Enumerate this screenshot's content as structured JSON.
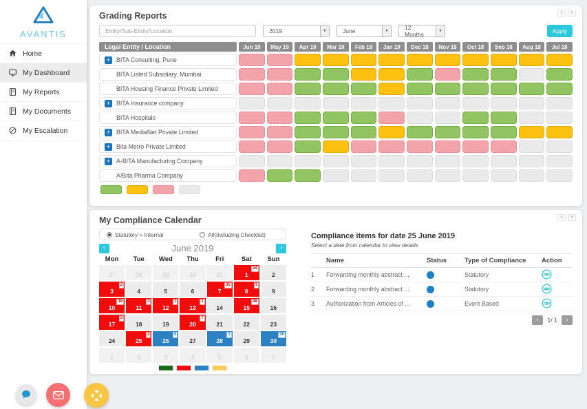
{
  "icons": {
    "collapse": "∧",
    "close": "✕",
    "prev": "‹",
    "next": "›",
    "dropdown": "▼",
    "plus": "+"
  },
  "colors": {
    "accent_cyan": "#2bc9db",
    "grade_red": "#f3a4aa",
    "grade_green": "#92c562",
    "grade_yellow": "#fdc112",
    "grade_gray": "#eaeaea",
    "cal_red": "#f20c0c",
    "cal_blue": "#2d80c2",
    "cal_legend_green": "#1c691c",
    "cal_legend_yellow": "#fbc95c",
    "status_blue": "#1b80c5"
  },
  "sidebar": {
    "logo_text": "AVANTIS",
    "items": [
      {
        "label": "Home",
        "icon": "home-icon",
        "active": false
      },
      {
        "label": "My Dashboard",
        "icon": "dashboard-icon",
        "active": true
      },
      {
        "label": "My Reports",
        "icon": "reports-icon",
        "active": false
      },
      {
        "label": "My Documents",
        "icon": "documents-icon",
        "active": false
      },
      {
        "label": "My Escalation",
        "icon": "escalation-icon",
        "active": false
      }
    ]
  },
  "grading": {
    "title": "Grading Reports",
    "filters": {
      "entity_placeholder": "Entity/Sub-Entity/Location",
      "year": "2019",
      "month": "June",
      "range": "12 Months",
      "apply_label": "Apply"
    },
    "table": {
      "entity_header": "Legal Entity / Location",
      "months": [
        "Jun 19",
        "May 19",
        "Apr 19",
        "Mar 19",
        "Feb 19",
        "Jan 19",
        "Dec 18",
        "Nov 18",
        "Oct 18",
        "Sep 18",
        "Aug 18",
        "Jul 18"
      ],
      "rows": [
        {
          "name": "BITA Consulting, Pune",
          "expandable": true,
          "grades": [
            "R",
            "R",
            "Y",
            "Y",
            "Y",
            "Y",
            "Y",
            "Y",
            "Y",
            "Y",
            "Y",
            "Y"
          ]
        },
        {
          "name": "BITA Listed Subsidiary, Mumbai",
          "expandable": false,
          "grades": [
            "R",
            "R",
            "G",
            "G",
            "Y",
            "Y",
            "G",
            "R",
            "G",
            "G",
            "N",
            "G"
          ]
        },
        {
          "name": "BITA Housing Finance Private Limited",
          "expandable": false,
          "grades": [
            "R",
            "R",
            "G",
            "G",
            "G",
            "Y",
            "G",
            "G",
            "G",
            "G",
            "G",
            "G"
          ]
        },
        {
          "name": "BITA Insurance company",
          "expandable": true,
          "grades": [
            "N",
            "N",
            "N",
            "N",
            "N",
            "N",
            "N",
            "N",
            "N",
            "N",
            "N",
            "N"
          ]
        },
        {
          "name": "BITA Hospitals",
          "expandable": false,
          "grades": [
            "R",
            "R",
            "G",
            "G",
            "G",
            "R",
            "N",
            "N",
            "G",
            "G",
            "N",
            "N"
          ]
        },
        {
          "name": "BITA MediaNet Private Limited",
          "expandable": true,
          "grades": [
            "R",
            "R",
            "G",
            "G",
            "G",
            "Y",
            "G",
            "G",
            "G",
            "G",
            "Y",
            "Y"
          ]
        },
        {
          "name": "Bita Metro Private Limited",
          "expandable": true,
          "grades": [
            "R",
            "R",
            "G",
            "Y",
            "R",
            "R",
            "R",
            "R",
            "R",
            "R",
            "N",
            "N"
          ]
        },
        {
          "name": "A-BITA Manufacturing Company",
          "expandable": true,
          "grades": [
            "N",
            "N",
            "N",
            "N",
            "N",
            "N",
            "N",
            "N",
            "N",
            "N",
            "N",
            "N"
          ]
        },
        {
          "name": "A/Bita Pharma Company",
          "expandable": false,
          "grades": [
            "R",
            "G",
            "G",
            "N",
            "N",
            "N",
            "N",
            "N",
            "N",
            "N",
            "N",
            "N"
          ]
        }
      ],
      "legend_codes": [
        "G",
        "Y",
        "R",
        "N"
      ]
    }
  },
  "calendar": {
    "title": "My Compliance Calendar",
    "radio_options": [
      {
        "label": "Statutory + Internal",
        "checked": true
      },
      {
        "label": "All(Including Checklist)",
        "checked": false
      }
    ],
    "month_title": "June 2019",
    "day_headers": [
      "Mon",
      "Tue",
      "Wed",
      "Thu",
      "Fri",
      "Sat",
      "Sun"
    ],
    "cells": [
      {
        "day": "27",
        "type": "muted"
      },
      {
        "day": "28",
        "type": "muted"
      },
      {
        "day": "29",
        "type": "muted"
      },
      {
        "day": "30",
        "type": "muted"
      },
      {
        "day": "31",
        "type": "muted"
      },
      {
        "day": "1",
        "type": "red",
        "badge": "24"
      },
      {
        "day": "2",
        "type": "normal"
      },
      {
        "day": "3",
        "type": "red",
        "badge": "2"
      },
      {
        "day": "4",
        "type": "normal"
      },
      {
        "day": "5",
        "type": "normal"
      },
      {
        "day": "6",
        "type": "normal"
      },
      {
        "day": "7",
        "type": "red",
        "badge": "35"
      },
      {
        "day": "8",
        "type": "red",
        "badge": "1"
      },
      {
        "day": "9",
        "type": "normal"
      },
      {
        "day": "10",
        "type": "red",
        "badge": "18"
      },
      {
        "day": "11",
        "type": "red",
        "badge": "3"
      },
      {
        "day": "12",
        "type": "red",
        "badge": "1"
      },
      {
        "day": "13",
        "type": "red",
        "badge": "1"
      },
      {
        "day": "14",
        "type": "normal"
      },
      {
        "day": "15",
        "type": "red",
        "badge": "48"
      },
      {
        "day": "16",
        "type": "normal"
      },
      {
        "day": "17",
        "type": "red",
        "badge": "3"
      },
      {
        "day": "18",
        "type": "normal"
      },
      {
        "day": "19",
        "type": "normal"
      },
      {
        "day": "20",
        "type": "red",
        "badge": "7"
      },
      {
        "day": "21",
        "type": "normal"
      },
      {
        "day": "22",
        "type": "normal"
      },
      {
        "day": "23",
        "type": "normal"
      },
      {
        "day": "24",
        "type": "normal"
      },
      {
        "day": "25",
        "type": "red",
        "badge": "3"
      },
      {
        "day": "26",
        "type": "blue",
        "badge": "6"
      },
      {
        "day": "27",
        "type": "normal"
      },
      {
        "day": "28",
        "type": "blue",
        "badge": "1"
      },
      {
        "day": "29",
        "type": "normal"
      },
      {
        "day": "30",
        "type": "blue",
        "badge": "56"
      },
      {
        "day": "1",
        "type": "muted"
      },
      {
        "day": "2",
        "type": "muted"
      },
      {
        "day": "3",
        "type": "muted"
      },
      {
        "day": "4",
        "type": "muted"
      },
      {
        "day": "5",
        "type": "muted"
      },
      {
        "day": "6",
        "type": "muted"
      },
      {
        "day": "7",
        "type": "muted"
      }
    ],
    "legend_colors": [
      "#1c691c",
      "#f20c0c",
      "#2d80c2",
      "#fbc95c"
    ]
  },
  "compliance": {
    "title": "Compliance items for date 25 June 2019",
    "subtitle": "Select a date from calendar to view details",
    "headers": {
      "name": "Name",
      "status": "Status",
      "type": "Type of Compliance",
      "action": "Action"
    },
    "rows": [
      {
        "num": "1",
        "name": "Forwarding monthly abstract ...",
        "type": "Statutory"
      },
      {
        "num": "2",
        "name": "Forwarding monthly abstract ...",
        "type": "Statutory"
      },
      {
        "num": "3",
        "name": "Authorization from Articles of ...",
        "type": "Event Based"
      }
    ],
    "pagination": "1/ 1"
  }
}
